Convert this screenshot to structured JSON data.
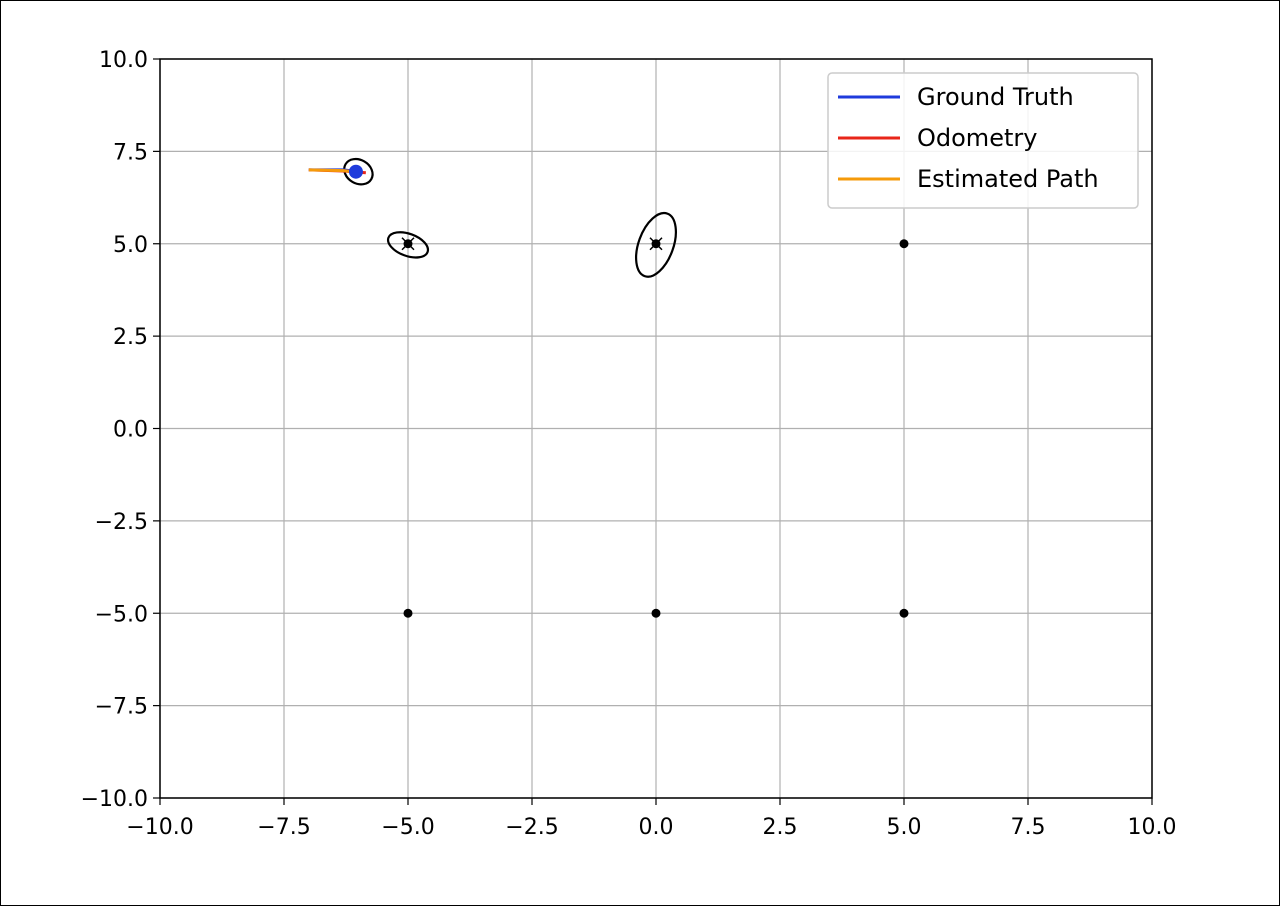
{
  "chart_data": {
    "type": "scatter",
    "xlim": [
      -10,
      10
    ],
    "ylim": [
      -10,
      10
    ],
    "grid": true,
    "legend_position": "top-right",
    "x_ticks": [
      -10,
      -7.5,
      -5,
      -2.5,
      0,
      2.5,
      5,
      7.5,
      10
    ],
    "y_ticks": [
      -10,
      -7.5,
      -5,
      -2.5,
      0,
      2.5,
      5,
      7.5,
      10
    ],
    "x_tick_labels": [
      "−10.0",
      "−7.5",
      "−5.0",
      "−2.5",
      "0.0",
      "2.5",
      "5.0",
      "7.5",
      "10.0"
    ],
    "y_tick_labels": [
      "−10.0",
      "−7.5",
      "−5.0",
      "−2.5",
      "0.0",
      "2.5",
      "5.0",
      "7.5",
      "10.0"
    ],
    "series": [
      {
        "name": "Ground Truth",
        "color": "#1f3bdc",
        "x": [
          -7.0,
          -6.3,
          -6.0
        ],
        "y": [
          7.0,
          7.0,
          6.95
        ]
      },
      {
        "name": "Odometry",
        "color": "#e8261a",
        "x": [
          -7.0,
          -6.3,
          -5.85
        ],
        "y": [
          7.0,
          6.97,
          6.92
        ]
      },
      {
        "name": "Estimated Path",
        "color": "#f59a0a",
        "x": [
          -7.0,
          -6.3,
          -5.95
        ],
        "y": [
          7.0,
          6.98,
          6.93
        ]
      }
    ],
    "robot": {
      "x": -6.05,
      "y": 6.95,
      "color": "#1f3bdc"
    },
    "landmarks": [
      {
        "x": -5,
        "y": 5
      },
      {
        "x": 0,
        "y": 5
      },
      {
        "x": 5,
        "y": 5
      },
      {
        "x": -5,
        "y": -5
      },
      {
        "x": 0,
        "y": -5
      },
      {
        "x": 5,
        "y": -5
      }
    ],
    "landmark_estimates": [
      {
        "x": -5.0,
        "y": 5.0
      },
      {
        "x": 0.0,
        "y": 5.0
      }
    ],
    "covariance_ellipses": [
      {
        "cx": -6.0,
        "cy": 6.95,
        "rx": 0.3,
        "ry": 0.32,
        "angle_deg": 30
      },
      {
        "cx": -5.0,
        "cy": 4.97,
        "rx": 0.42,
        "ry": 0.3,
        "angle_deg": 20
      },
      {
        "cx": 0.0,
        "cy": 4.97,
        "rx": 0.35,
        "ry": 0.9,
        "angle_deg": 20
      }
    ]
  }
}
